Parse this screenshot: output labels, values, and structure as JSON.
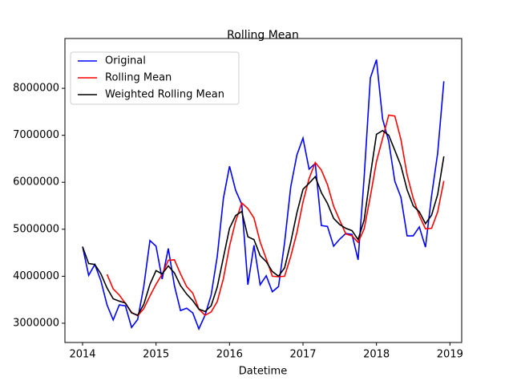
{
  "chart_data": {
    "type": "line",
    "title": "Rolling Mean",
    "xlabel": "Datetime",
    "x": [
      2014,
      2014.083,
      2014.167,
      2014.25,
      2014.333,
      2014.417,
      2014.5,
      2014.583,
      2014.667,
      2014.75,
      2014.833,
      2014.917,
      2015,
      2015.083,
      2015.167,
      2015.25,
      2015.333,
      2015.417,
      2015.5,
      2015.583,
      2015.667,
      2015.75,
      2015.833,
      2015.917,
      2016,
      2016.083,
      2016.167,
      2016.25,
      2016.333,
      2016.417,
      2016.5,
      2016.583,
      2016.667,
      2016.75,
      2016.833,
      2016.917,
      2017,
      2017.083,
      2017.167,
      2017.25,
      2017.333,
      2017.417,
      2017.5,
      2017.583,
      2017.667,
      2017.75,
      2017.833,
      2017.917,
      2018,
      2018.083,
      2018.167,
      2018.25,
      2018.333,
      2018.417,
      2018.5,
      2018.583,
      2018.667,
      2018.75,
      2018.833,
      2018.917
    ],
    "series": [
      {
        "name": "Original",
        "color": "#0000ff",
        "values": [
          4630000,
          4020000,
          4250000,
          3900000,
          3390000,
          3070000,
          3390000,
          3370000,
          2910000,
          3080000,
          3780000,
          4760000,
          4640000,
          3940000,
          4590000,
          3800000,
          3270000,
          3320000,
          3220000,
          2880000,
          3170000,
          3600000,
          4420000,
          5660000,
          6340000,
          5830000,
          5530000,
          3820000,
          4660000,
          3820000,
          4010000,
          3670000,
          3780000,
          4720000,
          5900000,
          6580000,
          6940000,
          6280000,
          6400000,
          5080000,
          5060000,
          4640000,
          4790000,
          4910000,
          4890000,
          4350000,
          6120000,
          8220000,
          8610000,
          7350000,
          6870000,
          6020000,
          5680000,
          4860000,
          4860000,
          5050000,
          4620000,
          5710000,
          6620000,
          8150000
        ]
      },
      {
        "name": "Rolling Mean",
        "color": "#ff0000",
        "values": [
          null,
          null,
          null,
          null,
          4040000,
          3730000,
          3600000,
          3420000,
          3230000,
          3160000,
          3310000,
          3580000,
          3830000,
          4040000,
          4340000,
          4350000,
          4050000,
          3780000,
          3640000,
          3300000,
          3170000,
          3240000,
          3460000,
          3950000,
          4640000,
          5170000,
          5560000,
          5440000,
          5240000,
          4730000,
          4370000,
          4000000,
          3990000,
          4000000,
          4420000,
          4930000,
          5580000,
          6080000,
          6420000,
          6260000,
          5950000,
          5490000,
          5190000,
          4900000,
          4860000,
          4720000,
          5010000,
          5700000,
          6440000,
          6930000,
          7430000,
          7410000,
          6910000,
          6160000,
          5660000,
          5290000,
          5010000,
          5020000,
          5370000,
          6030000
        ]
      },
      {
        "name": "Weighted Rolling Mean",
        "color": "#000000",
        "values": [
          4630000,
          4270000,
          4250000,
          4050000,
          3750000,
          3520000,
          3470000,
          3430000,
          3220000,
          3170000,
          3400000,
          3830000,
          4120000,
          4050000,
          4220000,
          4070000,
          3800000,
          3620000,
          3480000,
          3300000,
          3250000,
          3370000,
          3770000,
          4400000,
          5020000,
          5290000,
          5380000,
          4840000,
          4780000,
          4440000,
          4310000,
          4100000,
          4000000,
          4180000,
          4720000,
          5350000,
          5850000,
          5980000,
          6120000,
          5780000,
          5550000,
          5230000,
          5100000,
          5020000,
          4970000,
          4780000,
          5200000,
          6150000,
          7020000,
          7100000,
          7000000,
          6680000,
          6350000,
          5840000,
          5500000,
          5370000,
          5120000,
          5300000,
          5740000,
          6550000
        ]
      }
    ],
    "xlim": [
      2013.76,
      2019.16
    ],
    "xticks": [
      2014,
      2015,
      2016,
      2017,
      2018,
      2019
    ],
    "ylim": [
      2590000,
      9060000
    ],
    "yticks": [
      3000000,
      4000000,
      5000000,
      6000000,
      7000000,
      8000000
    ],
    "legend": "upper left",
    "grid": false
  }
}
